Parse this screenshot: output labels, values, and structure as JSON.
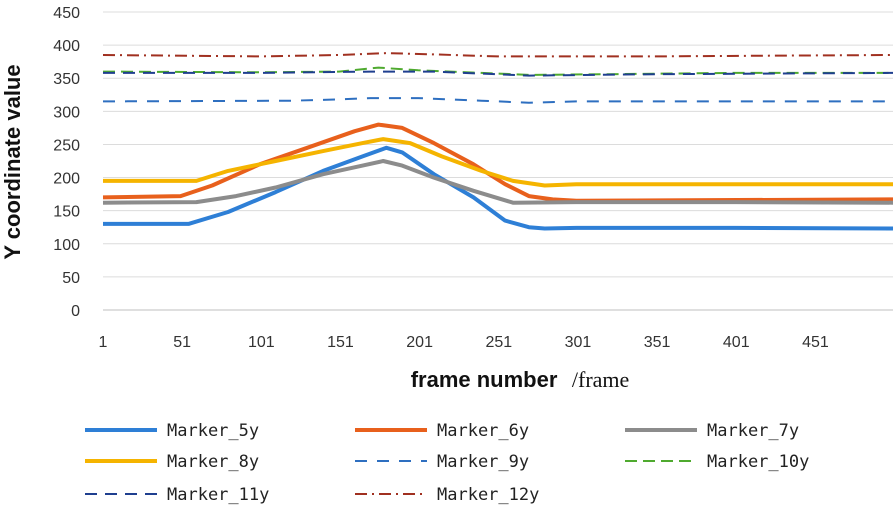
{
  "chart_data": {
    "type": "line",
    "title": "",
    "xlabel": "frame number",
    "xlabel_unit": "/frame",
    "ylabel": "Y coordinate value",
    "xlim": [
      1,
      500
    ],
    "ylim": [
      0,
      450
    ],
    "xticks": [
      1,
      51,
      101,
      151,
      201,
      251,
      301,
      351,
      401,
      451
    ],
    "yticks": [
      0,
      50,
      100,
      150,
      200,
      250,
      300,
      350,
      400,
      450
    ],
    "grid": "horizontal",
    "legend": "bottom",
    "series": [
      {
        "name": "Marker_5y",
        "color": "#2e7fd6",
        "dash": "solid",
        "width": 4,
        "points": [
          [
            1,
            130
          ],
          [
            55,
            130
          ],
          [
            80,
            148
          ],
          [
            110,
            178
          ],
          [
            140,
            210
          ],
          [
            165,
            232
          ],
          [
            180,
            245
          ],
          [
            190,
            238
          ],
          [
            210,
            205
          ],
          [
            235,
            170
          ],
          [
            255,
            135
          ],
          [
            270,
            125
          ],
          [
            280,
            123
          ],
          [
            300,
            124
          ],
          [
            400,
            124
          ],
          [
            500,
            123
          ]
        ]
      },
      {
        "name": "Marker_6y",
        "color": "#e8601c",
        "dash": "solid",
        "width": 4,
        "points": [
          [
            1,
            170
          ],
          [
            50,
            172
          ],
          [
            70,
            188
          ],
          [
            100,
            220
          ],
          [
            130,
            245
          ],
          [
            160,
            270
          ],
          [
            175,
            280
          ],
          [
            190,
            275
          ],
          [
            210,
            252
          ],
          [
            235,
            220
          ],
          [
            255,
            190
          ],
          [
            270,
            172
          ],
          [
            285,
            167
          ],
          [
            300,
            165
          ],
          [
            500,
            167
          ]
        ]
      },
      {
        "name": "Marker_7y",
        "color": "#8c8c8c",
        "dash": "solid",
        "width": 4,
        "points": [
          [
            1,
            162
          ],
          [
            60,
            163
          ],
          [
            85,
            172
          ],
          [
            110,
            185
          ],
          [
            140,
            205
          ],
          [
            165,
            218
          ],
          [
            178,
            225
          ],
          [
            190,
            218
          ],
          [
            210,
            200
          ],
          [
            235,
            180
          ],
          [
            260,
            162
          ],
          [
            300,
            163
          ],
          [
            400,
            163
          ],
          [
            500,
            162
          ]
        ]
      },
      {
        "name": "Marker_8y",
        "color": "#f5b400",
        "dash": "solid",
        "width": 4,
        "points": [
          [
            1,
            195
          ],
          [
            60,
            195
          ],
          [
            80,
            210
          ],
          [
            110,
            225
          ],
          [
            140,
            240
          ],
          [
            165,
            252
          ],
          [
            178,
            258
          ],
          [
            195,
            252
          ],
          [
            215,
            232
          ],
          [
            240,
            210
          ],
          [
            260,
            195
          ],
          [
            280,
            188
          ],
          [
            300,
            190
          ],
          [
            500,
            190
          ]
        ]
      },
      {
        "name": "Marker_9y",
        "color": "#2e6fc0",
        "dash": "12,10",
        "width": 2,
        "points": [
          [
            1,
            315
          ],
          [
            120,
            316
          ],
          [
            150,
            318
          ],
          [
            170,
            320
          ],
          [
            200,
            320
          ],
          [
            240,
            316
          ],
          [
            270,
            313
          ],
          [
            300,
            315
          ],
          [
            500,
            315
          ]
        ]
      },
      {
        "name": "Marker_10y",
        "color": "#4faa2f",
        "dash": "12,6",
        "width": 2,
        "points": [
          [
            1,
            360
          ],
          [
            100,
            359
          ],
          [
            150,
            360
          ],
          [
            175,
            366
          ],
          [
            200,
            362
          ],
          [
            240,
            358
          ],
          [
            270,
            355
          ],
          [
            320,
            356
          ],
          [
            400,
            358
          ],
          [
            500,
            358
          ]
        ]
      },
      {
        "name": "Marker_11y",
        "color": "#1f3f8f",
        "dash": "12,8",
        "width": 2,
        "points": [
          [
            1,
            358
          ],
          [
            100,
            358
          ],
          [
            170,
            360
          ],
          [
            210,
            360
          ],
          [
            270,
            354
          ],
          [
            350,
            356
          ],
          [
            500,
            358
          ]
        ]
      },
      {
        "name": "Marker_12y",
        "color": "#a03020",
        "dash": "12,5,2,5",
        "width": 2,
        "points": [
          [
            1,
            385
          ],
          [
            100,
            383
          ],
          [
            150,
            385
          ],
          [
            180,
            388
          ],
          [
            210,
            386
          ],
          [
            250,
            383
          ],
          [
            350,
            383
          ],
          [
            420,
            384
          ],
          [
            500,
            385
          ]
        ]
      }
    ]
  }
}
